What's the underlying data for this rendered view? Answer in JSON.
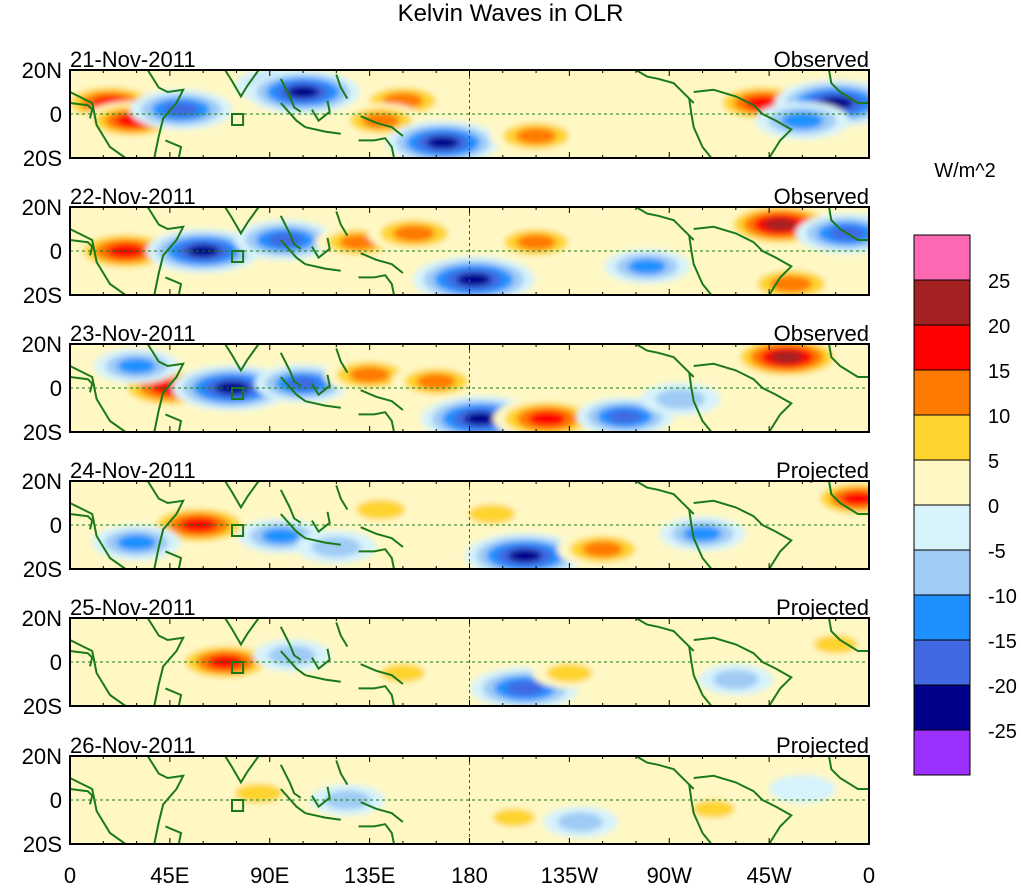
{
  "chart_data": {
    "type": "heatmap",
    "title": "Kelvin Waves in OLR",
    "colorbar_units": "W/m^2",
    "colorbar_levels": [
      -25,
      -20,
      -15,
      -10,
      -5,
      0,
      5,
      10,
      15,
      20,
      25
    ],
    "colorbar_colors": [
      "#9b30ff",
      "#00008b",
      "#4169e1",
      "#1e90ff",
      "#9fcbf5",
      "#d7f3fb",
      "#fff8c5",
      "#ffd42e",
      "#ff7a00",
      "#ff0000",
      "#a32121",
      "#ff69b4"
    ],
    "x_ticks": [
      "0",
      "45E",
      "90E",
      "135E",
      "180",
      "135W",
      "90W",
      "45W",
      "0"
    ],
    "x_range": [
      0,
      360
    ],
    "y_ticks": [
      "20N",
      "0",
      "20S"
    ],
    "y_range": [
      -20,
      20
    ],
    "panels": [
      {
        "date": "21-Nov-2011",
        "label": "Observed",
        "anomalies": [
          {
            "lon": 18,
            "lat": 5,
            "value": 18
          },
          {
            "lon": 28,
            "lat": -3,
            "value": 16
          },
          {
            "lon": 50,
            "lat": 2,
            "value": -18
          },
          {
            "lon": 95,
            "lat": 13,
            "value": -14
          },
          {
            "lon": 105,
            "lat": 10,
            "value": -22
          },
          {
            "lon": 150,
            "lat": 6,
            "value": 14
          },
          {
            "lon": 140,
            "lat": -3,
            "value": 12
          },
          {
            "lon": 168,
            "lat": -13,
            "value": -22
          },
          {
            "lon": 210,
            "lat": -10,
            "value": 14
          },
          {
            "lon": 312,
            "lat": 5,
            "value": 18
          },
          {
            "lon": 345,
            "lat": 5,
            "value": -25
          },
          {
            "lon": 330,
            "lat": -3,
            "value": -15
          }
        ]
      },
      {
        "date": "22-Nov-2011",
        "label": "Observed",
        "anomalies": [
          {
            "lon": 25,
            "lat": 0,
            "value": 20
          },
          {
            "lon": 60,
            "lat": 0,
            "value": -22
          },
          {
            "lon": 97,
            "lat": 5,
            "value": -18
          },
          {
            "lon": 130,
            "lat": 4,
            "value": 12
          },
          {
            "lon": 155,
            "lat": 8,
            "value": 15
          },
          {
            "lon": 182,
            "lat": -13,
            "value": -25
          },
          {
            "lon": 210,
            "lat": 4,
            "value": 13
          },
          {
            "lon": 260,
            "lat": -7,
            "value": -12
          },
          {
            "lon": 320,
            "lat": 12,
            "value": 22
          },
          {
            "lon": 350,
            "lat": 8,
            "value": -18
          },
          {
            "lon": 325,
            "lat": -15,
            "value": 15
          }
        ]
      },
      {
        "date": "23-Nov-2011",
        "label": "Observed",
        "anomalies": [
          {
            "lon": 45,
            "lat": 0,
            "value": 20
          },
          {
            "lon": 73,
            "lat": 0,
            "value": -24
          },
          {
            "lon": 105,
            "lat": 2,
            "value": -16
          },
          {
            "lon": 135,
            "lat": 6,
            "value": 14
          },
          {
            "lon": 165,
            "lat": 3,
            "value": 13
          },
          {
            "lon": 185,
            "lat": -14,
            "value": -24
          },
          {
            "lon": 215,
            "lat": -14,
            "value": 20
          },
          {
            "lon": 250,
            "lat": -13,
            "value": -16
          },
          {
            "lon": 323,
            "lat": 14,
            "value": 22
          },
          {
            "lon": 275,
            "lat": -5,
            "value": -10
          },
          {
            "lon": 30,
            "lat": 10,
            "value": -12
          }
        ]
      },
      {
        "date": "24-Nov-2011",
        "label": "Projected",
        "anomalies": [
          {
            "lon": 58,
            "lat": 0,
            "value": 20
          },
          {
            "lon": 30,
            "lat": -8,
            "value": -13
          },
          {
            "lon": 95,
            "lat": -5,
            "value": -12
          },
          {
            "lon": 140,
            "lat": 7,
            "value": 10
          },
          {
            "lon": 190,
            "lat": 5,
            "value": 9
          },
          {
            "lon": 205,
            "lat": -14,
            "value": -24
          },
          {
            "lon": 240,
            "lat": -11,
            "value": 14
          },
          {
            "lon": 285,
            "lat": -4,
            "value": -12
          },
          {
            "lon": 355,
            "lat": 12,
            "value": 16
          },
          {
            "lon": 120,
            "lat": -10,
            "value": -10
          }
        ]
      },
      {
        "date": "25-Nov-2011",
        "label": "Projected",
        "anomalies": [
          {
            "lon": 70,
            "lat": 0,
            "value": 18
          },
          {
            "lon": 100,
            "lat": 3,
            "value": -9
          },
          {
            "lon": 150,
            "lat": -5,
            "value": 7
          },
          {
            "lon": 205,
            "lat": -12,
            "value": -20
          },
          {
            "lon": 225,
            "lat": -5,
            "value": 8
          },
          {
            "lon": 300,
            "lat": -8,
            "value": -8
          },
          {
            "lon": 345,
            "lat": 8,
            "value": 7
          },
          {
            "lon": 20,
            "lat": 3,
            "value": 5
          }
        ]
      },
      {
        "date": "26-Nov-2011",
        "label": "Projected",
        "anomalies": [
          {
            "lon": 85,
            "lat": 3,
            "value": 9
          },
          {
            "lon": 125,
            "lat": 0,
            "value": -8
          },
          {
            "lon": 200,
            "lat": -8,
            "value": 6
          },
          {
            "lon": 230,
            "lat": -10,
            "value": -8
          },
          {
            "lon": 290,
            "lat": -4,
            "value": 6
          },
          {
            "lon": 40,
            "lat": -2,
            "value": 5
          },
          {
            "lon": 330,
            "lat": 5,
            "value": -5
          }
        ]
      }
    ]
  }
}
